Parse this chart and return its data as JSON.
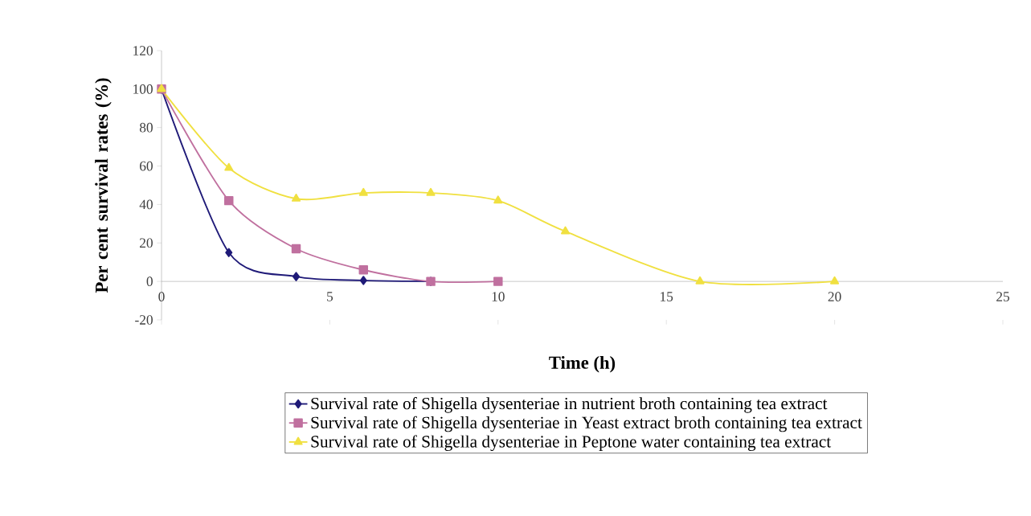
{
  "chart_data": {
    "type": "line",
    "xlabel": "Time (h)",
    "ylabel": "Per cent survival rates (%)",
    "xlim": [
      0,
      25
    ],
    "xticks": [
      0,
      5,
      10,
      15,
      20,
      25
    ],
    "ylim": [
      -20,
      120
    ],
    "yticks": [
      -20,
      0,
      20,
      40,
      60,
      80,
      100,
      120
    ],
    "grid": false,
    "legend": "bottom",
    "line_style": "solid",
    "series": [
      {
        "name": "Survival rate of Shigella dysenteriae in nutrient broth containing tea extract",
        "color": "#1f1a78",
        "marker": "diamond",
        "x": [
          0,
          2,
          4,
          6,
          8
        ],
        "values": [
          100,
          15,
          2.5,
          0.5,
          0
        ]
      },
      {
        "name": "Survival rate of Shigella dysenteriae in Yeast extract broth containing tea extract",
        "color": "#c0709f",
        "marker": "square",
        "x": [
          0,
          2,
          4,
          6,
          8,
          10
        ],
        "values": [
          100,
          42,
          17,
          6,
          0,
          0
        ]
      },
      {
        "name": "Survival rate of Shigella dysenteriae in Peptone water containing tea extract",
        "color": "#f0e040",
        "marker": "triangle",
        "x": [
          0,
          2,
          4,
          6,
          8,
          10,
          12,
          16,
          20
        ],
        "values": [
          100,
          59,
          43,
          46,
          46,
          42,
          26,
          0,
          0
        ]
      }
    ]
  }
}
